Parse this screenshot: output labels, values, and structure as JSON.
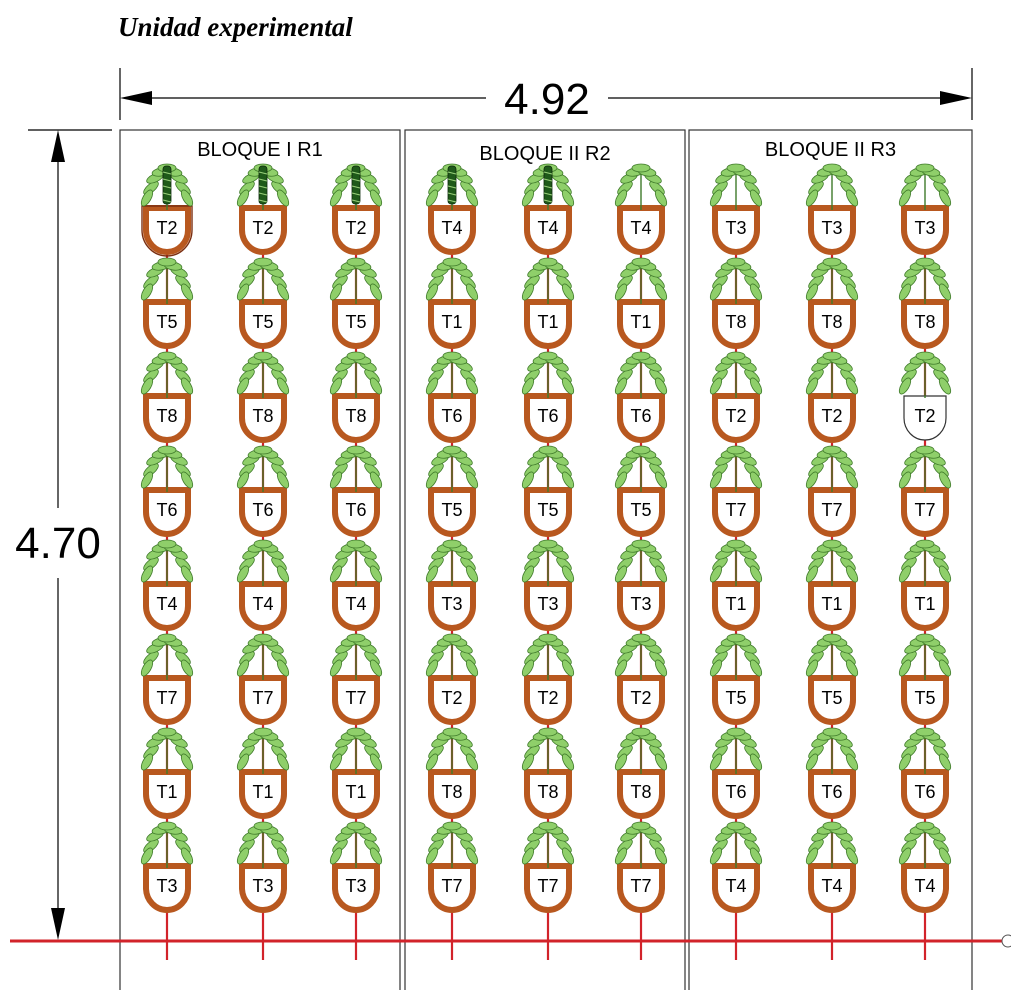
{
  "title": "Unidad experimental",
  "dimensions": {
    "width": "4.92",
    "height": "4.70"
  },
  "colors": {
    "pot": "#b8581f",
    "pot_highlight": "#7a2e10",
    "pipe": "#d2232a",
    "leaf": "#8fcf6a",
    "leaf_edge": "#3f7a2a",
    "dark_plant": "#1f5a1a",
    "frame": "#333333"
  },
  "blocks": [
    {
      "title": "BLOQUE I  R1",
      "rows": [
        [
          "T2",
          "T2",
          "T2"
        ],
        [
          "T5",
          "T5",
          "T5"
        ],
        [
          "T8",
          "T8",
          "T8"
        ],
        [
          "T6",
          "T6",
          "T6"
        ],
        [
          "T4",
          "T4",
          "T4"
        ],
        [
          "T7",
          "T7",
          "T7"
        ],
        [
          "T1",
          "T1",
          "T1"
        ],
        [
          "T3",
          "T3",
          "T3"
        ]
      ]
    },
    {
      "title": "BLOQUE II  R2",
      "rows": [
        [
          "T4",
          "T4",
          "T4"
        ],
        [
          "T1",
          "T1",
          "T1"
        ],
        [
          "T6",
          "T6",
          "T6"
        ],
        [
          "T5",
          "T5",
          "T5"
        ],
        [
          "T3",
          "T3",
          "T3"
        ],
        [
          "T2",
          "T2",
          "T2"
        ],
        [
          "T8",
          "T8",
          "T8"
        ],
        [
          "T7",
          "T7",
          "T7"
        ]
      ]
    },
    {
      "title": "BLOQUE II  R3",
      "rows": [
        [
          "T3",
          "T3",
          "T3"
        ],
        [
          "T8",
          "T8",
          "T8"
        ],
        [
          "T2",
          "T2",
          "T2"
        ],
        [
          "T7",
          "T7",
          "T7"
        ],
        [
          "T1",
          "T1",
          "T1"
        ],
        [
          "T5",
          "T5",
          "T5"
        ],
        [
          "T6",
          "T6",
          "T6"
        ],
        [
          "T4",
          "T4",
          "T4"
        ]
      ]
    }
  ]
}
